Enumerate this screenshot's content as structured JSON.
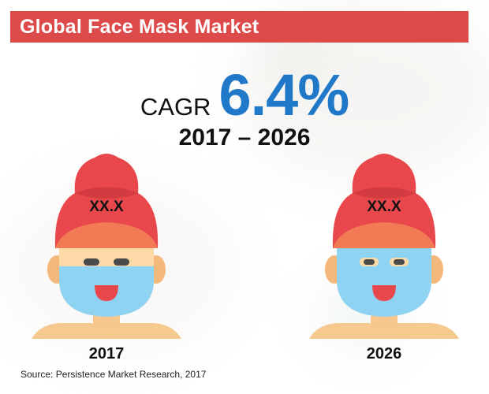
{
  "title": "Global Face Mask Market",
  "cagr": {
    "label": "CAGR",
    "value": "6.4%",
    "period": "2017 – 2026"
  },
  "figures": [
    {
      "value_label": "XX.X",
      "year": "2017",
      "mask_coverage": "partial",
      "icon": "woman-towel-face-mask-icon"
    },
    {
      "value_label": "XX.X",
      "year": "2026",
      "mask_coverage": "full",
      "icon": "woman-towel-face-mask-icon"
    }
  ],
  "source": "Source: Persistence Market Research, 2017",
  "colors": {
    "title_bar": "#dd4a4a",
    "cagr_value": "#1f79c8",
    "towel": "#e8474b",
    "towel_fold": "#f27a55",
    "skin": "#fcd9a6",
    "mask": "#8fd3f2"
  }
}
